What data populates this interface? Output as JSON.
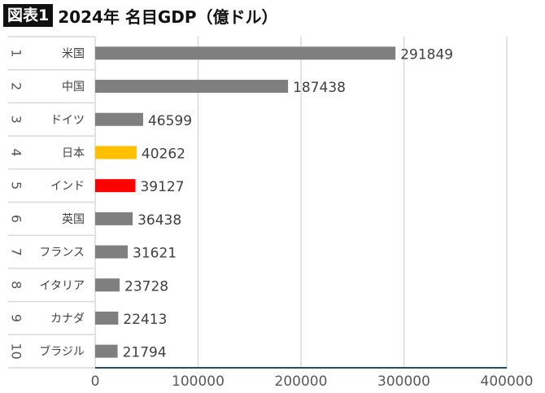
{
  "title": {
    "badge": "図表1",
    "text": "2024年 名目GDP（億ドル）"
  },
  "chart_data": {
    "type": "bar",
    "orientation": "horizontal",
    "title": "2024年 名目GDP（億ドル）",
    "ranks": [
      "1",
      "2",
      "3",
      "4",
      "5",
      "6",
      "7",
      "8",
      "9",
      "10"
    ],
    "categories": [
      "米国",
      "中国",
      "ドイツ",
      "日本",
      "インド",
      "英国",
      "フランス",
      "イタリア",
      "カナダ",
      "ブラジル"
    ],
    "values": [
      291849,
      187438,
      46599,
      40262,
      39127,
      36438,
      31621,
      23728,
      22413,
      21794
    ],
    "colors": [
      "#7f7f7f",
      "#7f7f7f",
      "#7f7f7f",
      "#ffc000",
      "#ff0000",
      "#7f7f7f",
      "#7f7f7f",
      "#7f7f7f",
      "#7f7f7f",
      "#7f7f7f"
    ],
    "xlim": [
      0,
      400000
    ],
    "xticks": [
      "0",
      "100000",
      "200000",
      "300000",
      "400000"
    ],
    "grid": true
  }
}
